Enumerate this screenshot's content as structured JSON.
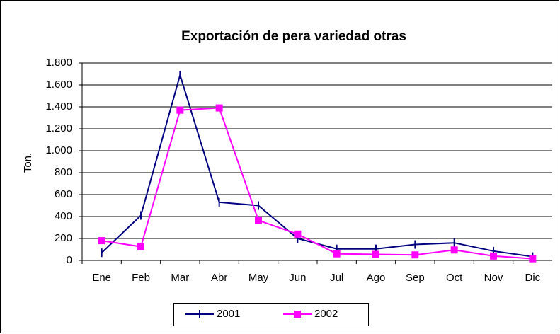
{
  "chart_data": {
    "type": "line",
    "title": "Exportación de pera variedad otras",
    "y_label": "Ton.",
    "categories": [
      "Ene",
      "Feb",
      "Mar",
      "Abr",
      "May",
      "Jun",
      "Jul",
      "Ago",
      "Sep",
      "Oct",
      "Nov",
      "Dic"
    ],
    "series": [
      {
        "name": "2001",
        "color": "#000080",
        "values": [
          70,
          410,
          1690,
          530,
          500,
          200,
          105,
          105,
          145,
          160,
          85,
          35
        ]
      },
      {
        "name": "2002",
        "color": "#ff00ff",
        "values": [
          180,
          125,
          1370,
          1390,
          365,
          240,
          60,
          55,
          50,
          95,
          40,
          15
        ]
      }
    ],
    "ylim": [
      0,
      1800
    ],
    "yticks": [
      0,
      200,
      400,
      600,
      800,
      {
        "value": 1000,
        "label": "1.000"
      },
      {
        "value": 1200,
        "label": "1.200"
      },
      {
        "value": 1400,
        "label": "1.400"
      },
      {
        "value": 1600,
        "label": "1.600"
      },
      {
        "value": 1800,
        "label": "1.800"
      }
    ],
    "grid": true,
    "legend": "bottom"
  }
}
